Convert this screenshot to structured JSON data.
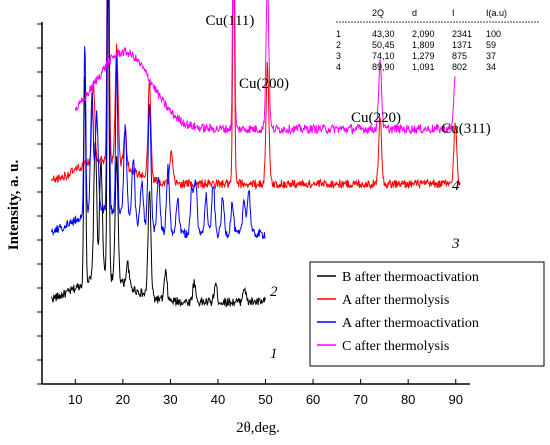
{
  "chart_data": {
    "type": "line",
    "xlabel": "2θ,deg.",
    "ylabel": "Intensity, a. u.",
    "xlim": [
      3,
      93
    ],
    "xticks": [
      10,
      20,
      30,
      40,
      50,
      60,
      70,
      80,
      90
    ],
    "grid": false,
    "legend_position": "bottom-right",
    "series": [
      {
        "name": "B after thermoactivation",
        "curve_number": "1",
        "color": "#000000",
        "x_range": [
          5,
          50
        ],
        "baseline": 82,
        "peaks": [
          [
            12.0,
            215
          ],
          [
            14.2,
            140
          ],
          [
            15.4,
            115
          ],
          [
            16.9,
            322
          ],
          [
            18.7,
            120
          ],
          [
            21.0,
            22
          ],
          [
            25.6,
            105
          ],
          [
            29.0,
            28
          ],
          [
            35.0,
            20
          ],
          [
            39.5,
            18
          ],
          [
            45.5,
            15
          ]
        ]
      },
      {
        "name": "A after thermolysis",
        "curve_number": "3",
        "color": "#ff0000",
        "x_range": [
          5,
          91
        ],
        "baseline": 200,
        "peaks": [
          [
            13.8,
            80
          ],
          [
            16.9,
            380
          ],
          [
            18.7,
            115
          ],
          [
            20.5,
            35
          ],
          [
            25.6,
            95
          ],
          [
            30.2,
            30
          ],
          [
            43.3,
            235
          ],
          [
            50.4,
            120
          ],
          [
            74.1,
            70
          ],
          [
            89.9,
            60
          ]
        ]
      },
      {
        "name": "A after thermoactivation",
        "curve_number": "2",
        "color": "#0000ff",
        "x_range": [
          5,
          50
        ],
        "baseline": 150,
        "peaks": [
          [
            12.0,
            170
          ],
          [
            13.5,
            115
          ],
          [
            14.5,
            95
          ],
          [
            16.9,
            360
          ],
          [
            18.7,
            160
          ],
          [
            20.5,
            90
          ],
          [
            22.2,
            60
          ],
          [
            24.0,
            45
          ],
          [
            25.6,
            125
          ],
          [
            27.5,
            55
          ],
          [
            29.5,
            65
          ],
          [
            31.5,
            35
          ],
          [
            34.5,
            45
          ],
          [
            35.3,
            55
          ],
          [
            37.5,
            40
          ],
          [
            39.0,
            50
          ],
          [
            41.0,
            35
          ],
          [
            43.0,
            30
          ],
          [
            45.5,
            35
          ],
          [
            46.5,
            45
          ]
        ]
      },
      {
        "name": "C after thermolysis",
        "curve_number": "4",
        "color": "#ff00ff",
        "x_range": [
          10,
          90
        ],
        "baseline": 255,
        "amorphous_hump": {
          "center": 21.5,
          "height": 60
        },
        "peaks": [
          [
            43.3,
            265
          ],
          [
            50.4,
            145
          ],
          [
            74.1,
            70
          ],
          [
            89.9,
            55
          ]
        ]
      }
    ],
    "annotations": [
      "Cu(111)",
      "Cu(200)",
      "Cu(220)",
      "Cu(311)"
    ],
    "table": {
      "headers": [
        "2Q",
        "d",
        "I",
        "I(a.u)"
      ],
      "rows": [
        [
          "1",
          "43,30",
          "2,090",
          "2341",
          "100"
        ],
        [
          "2",
          "50,45",
          "1,809",
          "1371",
          "59"
        ],
        [
          "3",
          "74,10",
          "1,279",
          "875",
          "37"
        ],
        [
          "4",
          "89,90",
          "1,091",
          "802",
          "34"
        ]
      ]
    }
  }
}
